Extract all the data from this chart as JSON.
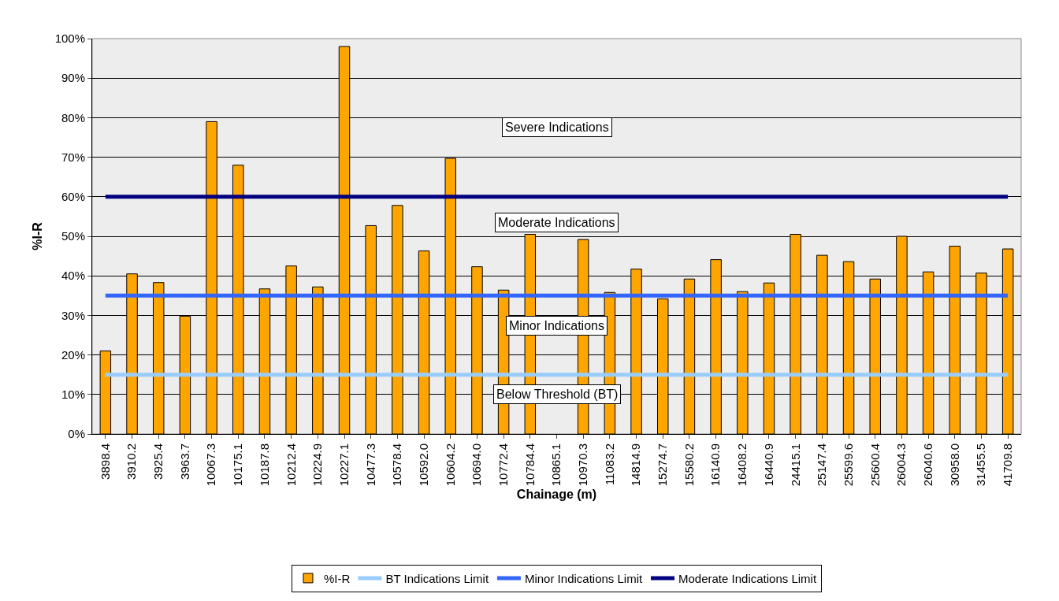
{
  "chart_data": {
    "type": "bar",
    "xlabel": "Chainage (m)",
    "ylabel": "%I-R",
    "categories": [
      "3898.4",
      "3910.2",
      "3925.4",
      "3963.7",
      "10067.3",
      "10175.1",
      "10187.8",
      "10212.4",
      "10224.9",
      "10227.1",
      "10477.3",
      "10578.4",
      "10592.0",
      "10604.2",
      "10694.0",
      "10772.4",
      "10784.4",
      "10865.1",
      "10970.3",
      "11083.2",
      "14814.9",
      "15274.7",
      "15580.2",
      "16140.9",
      "16408.2",
      "16440.9",
      "24415.1",
      "25147.4",
      "25599.6",
      "25600.4",
      "26004.3",
      "26040.6",
      "30958.0",
      "31455.5",
      "41709.8"
    ],
    "series": [
      {
        "name": "%I-R",
        "color": "#ffa500",
        "values": [
          21,
          40.5,
          38.3,
          29.8,
          79,
          68,
          36.7,
          42.5,
          37.2,
          98,
          52.7,
          57.8,
          46.3,
          69.7,
          42.3,
          36.4,
          50.5,
          null,
          49.2,
          35.8,
          41.7,
          34.2,
          39.2,
          44.1,
          36,
          38.2,
          50.5,
          45.2,
          43.6,
          39.2,
          50,
          41,
          47.5,
          40.7,
          46.8
        ]
      },
      {
        "name": "BT Indications Limit",
        "type": "line",
        "color": "#99ccff",
        "values": [
          15,
          15,
          15,
          15,
          15,
          15,
          15,
          15,
          15,
          15,
          15,
          15,
          15,
          15,
          15,
          15,
          15,
          15,
          15,
          15,
          15,
          15,
          15,
          15,
          15,
          15,
          15,
          15,
          15,
          15,
          15,
          15,
          15,
          15,
          15
        ]
      },
      {
        "name": "Minor Indications Limit",
        "type": "line",
        "color": "#3366ff",
        "values": [
          35,
          35,
          35,
          35,
          35,
          35,
          35,
          35,
          35,
          35,
          35,
          35,
          35,
          35,
          35,
          35,
          35,
          35,
          35,
          35,
          35,
          35,
          35,
          35,
          35,
          35,
          35,
          35,
          35,
          35,
          35,
          35,
          35,
          35,
          35
        ]
      },
      {
        "name": "Moderate Indications Limit",
        "type": "line",
        "color": "#000080",
        "values": [
          60,
          60,
          60,
          60,
          60,
          60,
          60,
          60,
          60,
          60,
          60,
          60,
          60,
          60,
          60,
          60,
          60,
          60,
          60,
          60,
          60,
          60,
          60,
          60,
          60,
          60,
          60,
          60,
          60,
          60,
          60,
          60,
          60,
          60,
          60
        ]
      }
    ],
    "annotations": [
      "Severe Indications",
      "Moderate Indications",
      "Minor Indications",
      "Below Threshold (BT)"
    ],
    "ylim": [
      0,
      100
    ],
    "yticks": [
      {
        "value": 0,
        "label": "0%"
      },
      {
        "value": 10,
        "label": "10%"
      },
      {
        "value": 20,
        "label": "20%"
      },
      {
        "value": 30,
        "label": "30%"
      },
      {
        "value": 40,
        "label": "40%"
      },
      {
        "value": 50,
        "label": "50%"
      },
      {
        "value": 60,
        "label": "60%"
      },
      {
        "value": 70,
        "label": "70%"
      },
      {
        "value": 80,
        "label": "80%"
      },
      {
        "value": 90,
        "label": "90%"
      },
      {
        "value": 100,
        "label": "100%"
      }
    ],
    "grid": "y",
    "legend": "bottom",
    "marker": "none",
    "line_style": "solid"
  }
}
